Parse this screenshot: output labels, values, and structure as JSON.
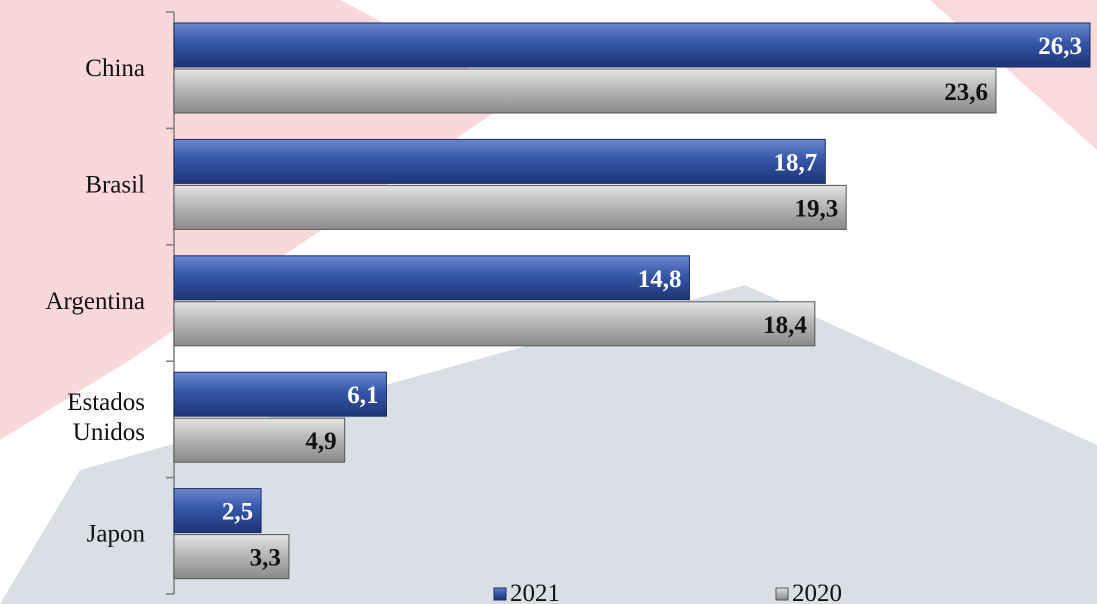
{
  "chart_data": {
    "type": "bar",
    "orientation": "horizontal",
    "categories": [
      "China",
      "Brasil",
      "Argentina",
      "Estados Unidos",
      "Japon"
    ],
    "category_lines": [
      [
        "China"
      ],
      [
        "Brasil"
      ],
      [
        "Argentina"
      ],
      [
        "Estados",
        "Unidos"
      ],
      [
        "Japon"
      ]
    ],
    "series": [
      {
        "name": "2021",
        "values": [
          26.3,
          18.7,
          14.8,
          6.1,
          2.5
        ],
        "labels": [
          "26,3",
          "18,7",
          "14,8",
          "6,1",
          "2,5"
        ],
        "color": "#2f4f9f",
        "label_color": "#ffffff",
        "label_position": "inside-end"
      },
      {
        "name": "2020",
        "values": [
          23.6,
          19.3,
          18.4,
          4.9,
          3.3
        ],
        "labels": [
          "23,6",
          "19,3",
          "18,4",
          "4,9",
          "3,3"
        ],
        "color": "#a8a8a8",
        "label_color": "#111111",
        "label_position": "inside-end"
      }
    ],
    "title": "",
    "xlabel": "",
    "ylabel": "",
    "xlim": [
      0,
      26.3
    ],
    "grid": false,
    "legend_position": "bottom"
  },
  "colors": {
    "background_red": "#f8c9cc",
    "background_gray": "#d7dde4"
  }
}
